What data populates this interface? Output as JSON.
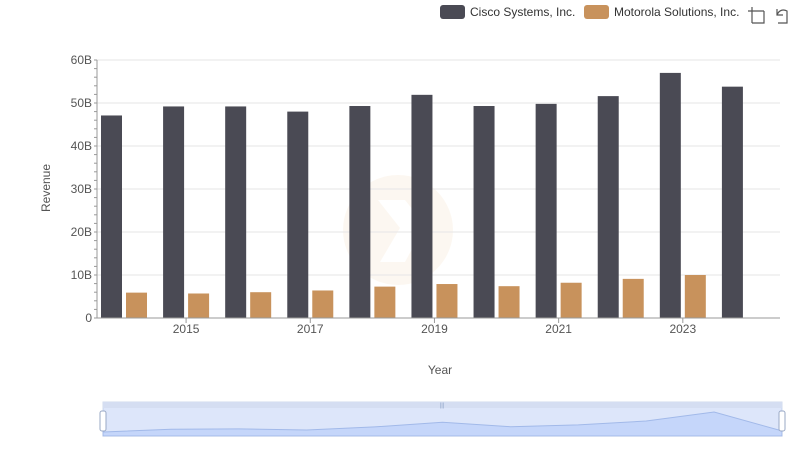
{
  "toolbar": {
    "zoom_icon": "zoom-select-icon",
    "reset_icon": "zoom-reset-icon"
  },
  "chart_data": {
    "type": "bar",
    "xlabel": "Year",
    "ylabel": "Revenue",
    "ylim": [
      0,
      60
    ],
    "y_unit_suffix": "B",
    "y_ticks": [
      "0",
      "10B",
      "20B",
      "30B",
      "40B",
      "50B",
      "60B"
    ],
    "x_tick_labels": [
      "2015",
      "2017",
      "2019",
      "2021",
      "2023"
    ],
    "categories": [
      "2014",
      "2015",
      "2016",
      "2017",
      "2018",
      "2019",
      "2020",
      "2021",
      "2022",
      "2023",
      "2024"
    ],
    "legend_position": "top-right",
    "series": [
      {
        "name": "Cisco Systems, Inc.",
        "color": "#4a4a54",
        "values": [
          47.1,
          49.2,
          49.2,
          48.0,
          49.3,
          51.9,
          49.3,
          49.8,
          51.6,
          57.0,
          53.8
        ]
      },
      {
        "name": "Motorola Solutions, Inc.",
        "color": "#c8925c",
        "values": [
          5.9,
          5.7,
          6.0,
          6.4,
          7.3,
          7.9,
          7.4,
          8.2,
          9.1,
          10.0,
          null
        ]
      }
    ],
    "zoom_range": [
      0,
      100
    ]
  }
}
